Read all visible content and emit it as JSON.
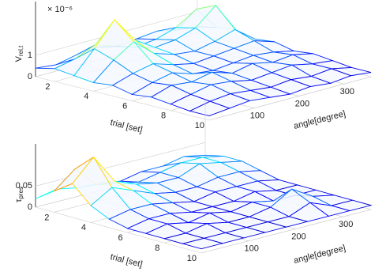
{
  "chart_data": [
    {
      "type": "surface",
      "x_label": "trial [set]",
      "y_label": "angle[degree]",
      "z_label": "V",
      "z_label_sub": "rel,t",
      "z_scale_label": "× 10⁻⁶",
      "colormap": "jet",
      "trials": [
        1,
        2,
        3,
        4,
        5,
        6,
        7,
        8,
        9,
        10
      ],
      "angles": [
        0,
        45,
        90,
        135,
        180,
        225,
        270,
        315,
        360
      ],
      "z": [
        [
          0.4,
          0.3,
          0.5,
          0.6,
          0.4,
          0.5,
          0.6,
          0.4,
          0.3
        ],
        [
          0.6,
          0.8,
          1.2,
          0.9,
          0.6,
          0.7,
          1.0,
          1.6,
          0.5
        ],
        [
          0.5,
          1.5,
          2.6,
          1.4,
          0.8,
          0.9,
          1.2,
          2.0,
          0.6
        ],
        [
          0.4,
          1.2,
          1.8,
          1.0,
          0.7,
          0.6,
          0.8,
          1.1,
          0.4
        ],
        [
          0.5,
          0.8,
          1.0,
          0.7,
          0.5,
          0.6,
          0.7,
          0.8,
          0.5
        ],
        [
          0.3,
          0.6,
          0.8,
          0.5,
          0.4,
          0.5,
          0.6,
          0.5,
          0.3
        ],
        [
          0.4,
          0.7,
          0.6,
          0.8,
          0.5,
          0.7,
          0.5,
          0.6,
          0.4
        ],
        [
          0.3,
          0.5,
          0.7,
          0.6,
          0.4,
          0.5,
          0.6,
          0.4,
          0.3
        ],
        [
          0.2,
          0.4,
          0.5,
          0.4,
          0.3,
          0.4,
          0.3,
          0.4,
          0.2
        ],
        [
          0.2,
          0.3,
          0.4,
          0.3,
          0.2,
          0.3,
          0.2,
          0.3,
          0.2
        ]
      ],
      "xlim": [
        1,
        10
      ],
      "xticks": [
        2,
        4,
        6,
        8,
        10
      ],
      "ylim": [
        0,
        360
      ],
      "yticks": [
        100,
        200,
        300
      ],
      "zlim": [
        0,
        3.5
      ],
      "zticks": [
        0,
        1
      ]
    },
    {
      "type": "surface",
      "x_label": "trial [set]",
      "y_label": "angle[degree]",
      "z_label": "τ",
      "z_label_sub": "pres",
      "colormap": "jet",
      "trials": [
        1,
        2,
        3,
        4,
        5,
        6,
        7,
        8,
        9,
        10
      ],
      "angles": [
        0,
        45,
        90,
        135,
        180,
        225,
        270,
        315,
        360
      ],
      "z": [
        [
          0.02,
          0.03,
          0.02,
          0.02,
          0.01,
          0.02,
          0.02,
          0.03,
          0.02
        ],
        [
          0.05,
          0.09,
          0.04,
          0.03,
          0.02,
          0.03,
          0.04,
          0.04,
          0.03
        ],
        [
          0.08,
          0.13,
          0.06,
          0.04,
          0.03,
          0.03,
          0.05,
          0.04,
          0.03
        ],
        [
          0.04,
          0.07,
          0.05,
          0.03,
          0.02,
          0.02,
          0.03,
          0.03,
          0.02
        ],
        [
          0.02,
          0.03,
          0.03,
          0.02,
          0.01,
          0.02,
          0.02,
          0.02,
          0.01
        ],
        [
          0.01,
          0.02,
          0.02,
          0.01,
          0.01,
          0.01,
          0.02,
          0.01,
          0.01
        ],
        [
          0.01,
          0.02,
          0.01,
          0.02,
          0.01,
          0.02,
          0.01,
          0.01,
          0.01
        ],
        [
          0.01,
          0.01,
          0.02,
          0.01,
          0.01,
          0.02,
          0.05,
          0.02,
          0.01
        ],
        [
          0.01,
          0.01,
          0.01,
          0.01,
          0.01,
          0.01,
          0.03,
          0.01,
          0.01
        ],
        [
          0.01,
          0.01,
          0.01,
          0.01,
          0.01,
          0.01,
          0.01,
          0.01,
          0.01
        ]
      ],
      "xlim": [
        1,
        10
      ],
      "xticks": [
        2,
        4,
        6,
        8,
        10
      ],
      "ylim": [
        0,
        360
      ],
      "yticks": [
        100,
        200,
        300
      ],
      "zlim": [
        0,
        0.15
      ],
      "zticks": [
        0,
        0.05
      ]
    }
  ]
}
